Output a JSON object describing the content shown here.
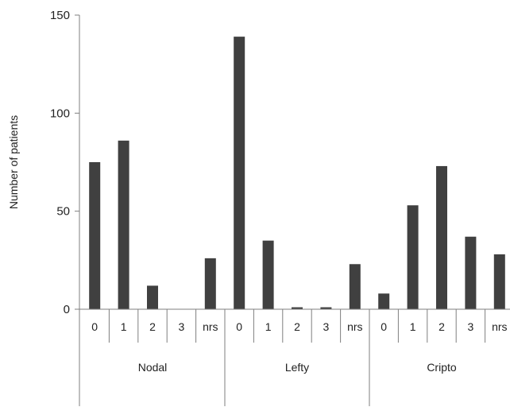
{
  "chart_data": {
    "type": "bar",
    "title": "",
    "xlabel": "",
    "ylabel": "Number of patients",
    "ylim": [
      0,
      150
    ],
    "yticks": [
      0,
      50,
      100,
      150
    ],
    "grid": false,
    "legend": "none",
    "bar_color": "#404040",
    "axis_color": "#7f7f7f",
    "groups": [
      {
        "name": "Nodal",
        "categories": [
          "0",
          "1",
          "2",
          "3",
          "nrs"
        ],
        "values": [
          75,
          86,
          12,
          0,
          26
        ]
      },
      {
        "name": "Lefty",
        "categories": [
          "0",
          "1",
          "2",
          "3",
          "nrs"
        ],
        "values": [
          139,
          35,
          1,
          1,
          23
        ]
      },
      {
        "name": "Cripto",
        "categories": [
          "0",
          "1",
          "2",
          "3",
          "nrs"
        ],
        "values": [
          8,
          53,
          73,
          37,
          28
        ]
      }
    ]
  }
}
